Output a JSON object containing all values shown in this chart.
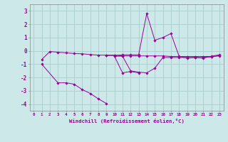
{
  "xlabel": "Windchill (Refroidissement éolien,°C)",
  "bg_color": "#cce8e8",
  "grid_color": "#aacccc",
  "line_color": "#990099",
  "x_ticks": [
    0,
    1,
    2,
    3,
    4,
    5,
    6,
    7,
    8,
    9,
    10,
    11,
    12,
    13,
    14,
    15,
    16,
    17,
    18,
    19,
    20,
    21,
    22,
    23
  ],
  "ylim": [
    -4.5,
    3.5
  ],
  "yticks": [
    -4,
    -3,
    -2,
    -1,
    0,
    1,
    2,
    3
  ],
  "series": [
    [
      null,
      -0.65,
      -0.05,
      -0.1,
      -0.15,
      -0.2,
      -0.22,
      -0.28,
      -0.32,
      -0.32,
      -0.32,
      -0.38,
      -0.38,
      -0.38,
      -0.38,
      -0.38,
      -0.38,
      -0.42,
      -0.42,
      -0.42,
      -0.42,
      -0.42,
      -0.42,
      -0.38
    ],
    [
      null,
      -1.0,
      null,
      -2.4,
      -2.4,
      -2.5,
      -2.9,
      -3.2,
      -3.6,
      -3.95,
      null,
      null,
      null,
      null,
      null,
      null,
      null,
      null,
      null,
      null,
      null,
      null,
      null,
      null
    ],
    [
      null,
      null,
      null,
      null,
      null,
      null,
      null,
      null,
      null,
      null,
      -0.4,
      -1.65,
      -1.55,
      -1.65,
      null,
      null,
      null,
      null,
      null,
      null,
      null,
      null,
      null,
      null
    ],
    [
      null,
      null,
      null,
      null,
      null,
      null,
      null,
      null,
      null,
      -0.35,
      -0.35,
      -0.3,
      -0.3,
      -0.3,
      2.8,
      0.8,
      1.0,
      1.3,
      -0.4,
      -0.55,
      -0.5,
      -0.55,
      -0.4,
      -0.3
    ],
    [
      null,
      null,
      null,
      null,
      null,
      null,
      null,
      null,
      null,
      null,
      -0.4,
      -0.4,
      -1.5,
      -1.6,
      -1.65,
      -1.3,
      -0.5,
      -0.5,
      -0.5,
      -0.5,
      -0.5,
      -0.5,
      -0.45,
      -0.35
    ]
  ]
}
